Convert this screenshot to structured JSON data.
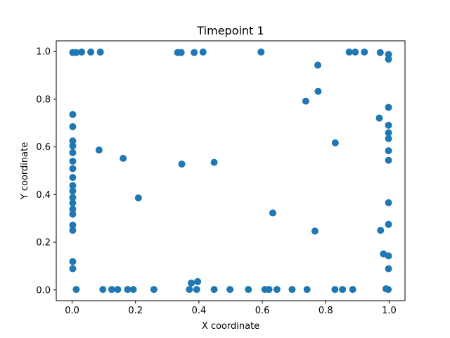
{
  "chart_data": {
    "type": "scatter",
    "title": "Timepoint 1",
    "xlabel": "X coordinate",
    "ylabel": "Y coordinate",
    "xlim": [
      -0.05,
      1.05
    ],
    "ylim": [
      -0.045,
      1.045
    ],
    "xticks": [
      0.0,
      0.2,
      0.4,
      0.6,
      0.8,
      1.0
    ],
    "yticks": [
      0.0,
      0.2,
      0.4,
      0.6,
      0.8,
      1.0
    ],
    "xtick_labels": [
      "0.0",
      "0.2",
      "0.4",
      "0.6",
      "0.8",
      "1.0"
    ],
    "ytick_labels": [
      "0.0",
      "0.2",
      "0.4",
      "0.6",
      "0.8",
      "1.0"
    ],
    "grid": false,
    "marker_color": "#1f77b4",
    "series": [
      {
        "points": [
          [
            0.002,
            0.996
          ],
          [
            0.013,
            0.996
          ],
          [
            0.03,
            0.998
          ],
          [
            0.059,
            0.998
          ],
          [
            0.089,
            0.998
          ],
          [
            0.333,
            0.996
          ],
          [
            0.344,
            0.996
          ],
          [
            0.385,
            0.996
          ],
          [
            0.413,
            0.998
          ],
          [
            0.596,
            0.998
          ],
          [
            0.874,
            0.998
          ],
          [
            0.893,
            0.998
          ],
          [
            0.922,
            0.998
          ],
          [
            0.972,
            0.996
          ],
          [
            0.998,
            0.988
          ],
          [
            0.998,
            0.968
          ],
          [
            0.775,
            0.943
          ],
          [
            0.776,
            0.833
          ],
          [
            0.737,
            0.792
          ],
          [
            0.998,
            0.766
          ],
          [
            0.002,
            0.736
          ],
          [
            0.969,
            0.721
          ],
          [
            0.002,
            0.685
          ],
          [
            0.998,
            0.691
          ],
          [
            0.998,
            0.659
          ],
          [
            0.998,
            0.635
          ],
          [
            0.002,
            0.625
          ],
          [
            0.002,
            0.604
          ],
          [
            0.83,
            0.617
          ],
          [
            0.085,
            0.587
          ],
          [
            0.998,
            0.584
          ],
          [
            0.002,
            0.576
          ],
          [
            0.161,
            0.552
          ],
          [
            0.998,
            0.544
          ],
          [
            0.002,
            0.54
          ],
          [
            0.448,
            0.535
          ],
          [
            0.346,
            0.528
          ],
          [
            0.002,
            0.509
          ],
          [
            0.002,
            0.472
          ],
          [
            0.002,
            0.438
          ],
          [
            0.002,
            0.415
          ],
          [
            0.209,
            0.386
          ],
          [
            0.002,
            0.388
          ],
          [
            0.002,
            0.365
          ],
          [
            0.998,
            0.366
          ],
          [
            0.002,
            0.339
          ],
          [
            0.002,
            0.318
          ],
          [
            0.633,
            0.323
          ],
          [
            0.002,
            0.272
          ],
          [
            0.998,
            0.275
          ],
          [
            0.002,
            0.25
          ],
          [
            0.766,
            0.247
          ],
          [
            0.973,
            0.25
          ],
          [
            0.982,
            0.151
          ],
          [
            0.998,
            0.143
          ],
          [
            0.002,
            0.119
          ],
          [
            0.002,
            0.089
          ],
          [
            0.998,
            0.089
          ],
          [
            0.376,
            0.029
          ],
          [
            0.396,
            0.035
          ],
          [
            0.013,
            0.002
          ],
          [
            0.097,
            0.002
          ],
          [
            0.125,
            0.002
          ],
          [
            0.144,
            0.002
          ],
          [
            0.175,
            0.002
          ],
          [
            0.193,
            0.002
          ],
          [
            0.258,
            0.002
          ],
          [
            0.37,
            0.002
          ],
          [
            0.393,
            0.002
          ],
          [
            0.448,
            0.002
          ],
          [
            0.498,
            0.002
          ],
          [
            0.556,
            0.002
          ],
          [
            0.608,
            0.002
          ],
          [
            0.621,
            0.002
          ],
          [
            0.646,
            0.002
          ],
          [
            0.694,
            0.002
          ],
          [
            0.741,
            0.002
          ],
          [
            0.829,
            0.002
          ],
          [
            0.853,
            0.002
          ],
          [
            0.885,
            0.002
          ],
          [
            0.99,
            0.005
          ],
          [
            0.997,
            0.002
          ]
        ]
      }
    ]
  }
}
